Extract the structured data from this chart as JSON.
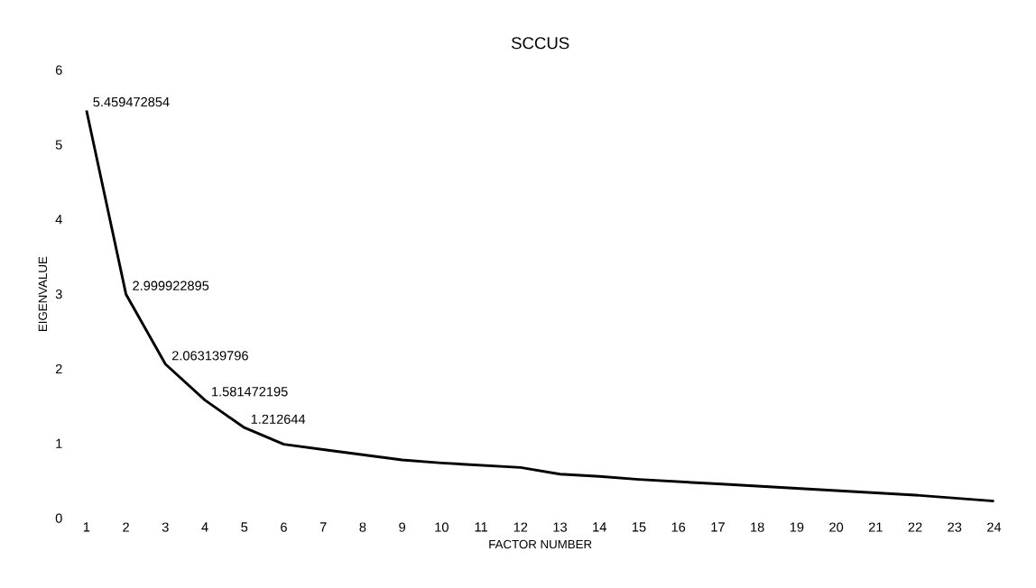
{
  "chart_data": {
    "type": "line",
    "title": "SCCUS",
    "xlabel": "FACTOR NUMBER",
    "ylabel": "EIGENVALUE",
    "categories": [
      "1",
      "2",
      "3",
      "4",
      "5",
      "6",
      "7",
      "8",
      "9",
      "10",
      "11",
      "12",
      "13",
      "14",
      "15",
      "16",
      "17",
      "18",
      "19",
      "20",
      "21",
      "22",
      "23",
      "24"
    ],
    "series": [
      {
        "color": "#000000",
        "values": [
          5.459472854,
          2.999922895,
          2.063139796,
          1.581472195,
          1.212644,
          0.99,
          0.92,
          0.85,
          0.78,
          0.74,
          0.71,
          0.68,
          0.59,
          0.56,
          0.52,
          0.49,
          0.46,
          0.43,
          0.4,
          0.37,
          0.34,
          0.31,
          0.27,
          0.23
        ],
        "value_labels": [
          "5.459472854",
          "2.999922895",
          "2.063139796",
          "1.581472195",
          "1.212644",
          null,
          null,
          null,
          null,
          null,
          null,
          null,
          null,
          null,
          null,
          null,
          null,
          null,
          null,
          null,
          null,
          null,
          null,
          null
        ]
      }
    ],
    "ylim": [
      0,
      6
    ],
    "yticks": [
      0,
      1,
      2,
      3,
      4,
      5,
      6
    ],
    "grid": false,
    "marker": "none",
    "line_style": "solid"
  }
}
